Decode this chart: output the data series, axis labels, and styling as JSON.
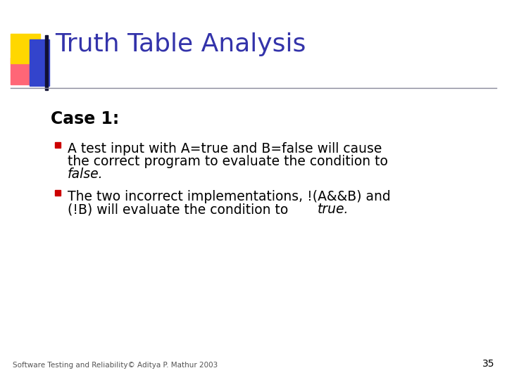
{
  "title": "Truth Table Analysis",
  "title_color": "#3333AA",
  "case_label": "Case 1:",
  "footer": "Software Testing and Reliability© Aditya P. Mathur 2003",
  "page_number": "35",
  "bg_color": "#FFFFFF",
  "text_color": "#000000",
  "bullet_color": "#CC0000",
  "line_color": "#888899",
  "decoration": {
    "yellow": "#FFD700",
    "red_pink": "#FF6677",
    "blue": "#3344CC",
    "dark_bar_color": "#111133"
  },
  "title_fontsize": 26,
  "case_fontsize": 17,
  "body_fontsize": 13.5,
  "footer_fontsize": 7.5,
  "page_fontsize": 10
}
